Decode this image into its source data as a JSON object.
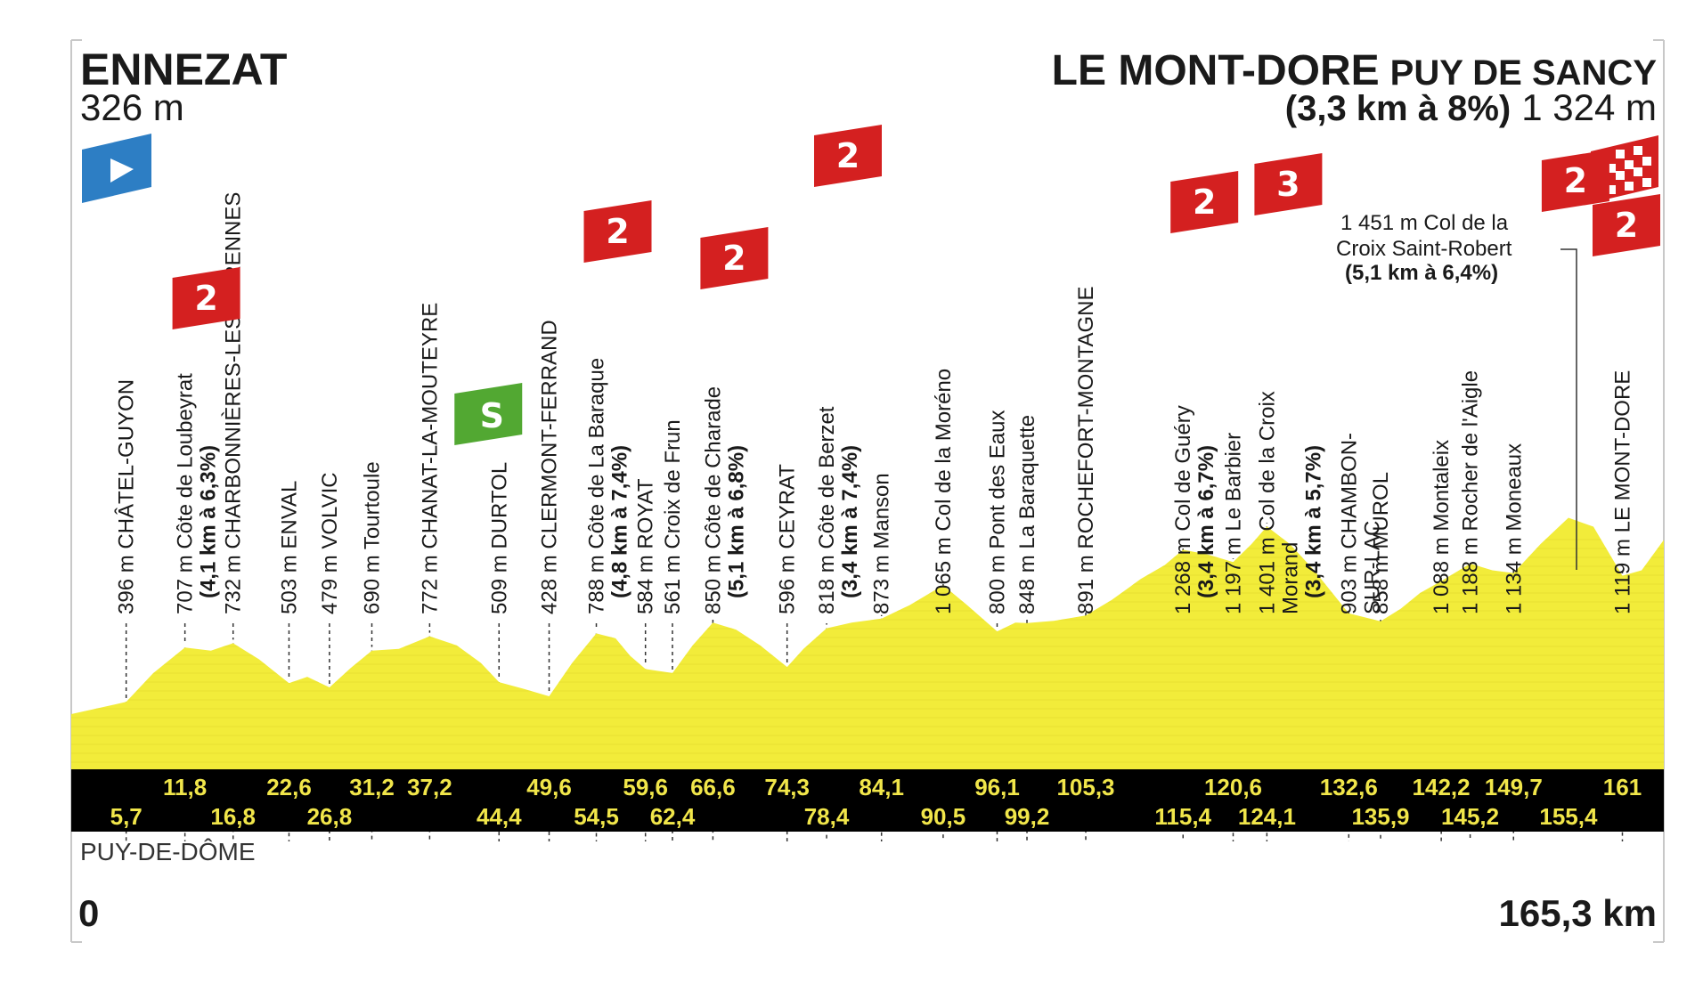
{
  "start": {
    "name": "ENNEZAT",
    "altitude": "326 m"
  },
  "finish": {
    "name": "LE MONT-DORE",
    "name_suffix": "PUY DE SANCY",
    "climb_info": "(3,3 km à 8%)",
    "altitude": "1 324 m"
  },
  "department": "PUY-DE-DÔME",
  "distance_start": "0",
  "distance_end": "165,3 km",
  "colors": {
    "profile": "#f2ec3a",
    "profile_shade": "#e0d92a",
    "category": "#d42020",
    "sprint": "#52a832",
    "start_flag": "#2d7ec4",
    "band": "#000000",
    "band_text": "#f1e64a"
  },
  "climb_markers": [
    {
      "category": "2",
      "km": 11.8
    },
    {
      "category": "2",
      "km": 54.5
    },
    {
      "category": "2",
      "km": 66.6
    },
    {
      "category": "2",
      "km": 78.4
    },
    {
      "category": "2",
      "km": 115.4
    },
    {
      "category": "3",
      "km": 124.1
    },
    {
      "category": "2",
      "km": 155.4
    },
    {
      "category": "2",
      "km": 165.3
    }
  ],
  "sprint": {
    "label": "S",
    "km": 44.4
  },
  "cima_label": {
    "line1": "1 451 m Col de la",
    "line2": "Croix Saint-Robert",
    "line3": "(5,1 km à 6,4%)"
  },
  "waypoints": [
    {
      "km": 5.7,
      "alt": "396 m",
      "name": "CHÂTEL-GUYON",
      "name_bold": ""
    },
    {
      "km": 11.8,
      "alt": "707 m",
      "name": "Côte de Loubeyrat",
      "name_bold": "(4,1 km à 6,3%)"
    },
    {
      "km": 16.8,
      "alt": "732 m",
      "name": "CHARBONNIÈRES-LES-VARENNES",
      "name_bold": ""
    },
    {
      "km": 22.6,
      "alt": "503 m",
      "name": "ENVAL",
      "name_bold": ""
    },
    {
      "km": 26.8,
      "alt": "479 m",
      "name": "VOLVIC",
      "name_bold": ""
    },
    {
      "km": 31.2,
      "alt": "690 m",
      "name": "Tourtoule",
      "name_bold": ""
    },
    {
      "km": 37.2,
      "alt": "772 m",
      "name": "CHANAT-LA-MOUTEYRE",
      "name_bold": ""
    },
    {
      "km": 44.4,
      "alt": "509 m",
      "name": "DURTOL",
      "name_bold": ""
    },
    {
      "km": 49.6,
      "alt": "428 m",
      "name": "CLERMONT-FERRAND",
      "name_bold": ""
    },
    {
      "km": 54.5,
      "alt": "788 m",
      "name": "Côte de La Baraque",
      "name_bold": "(4,8 km à 7,4%)"
    },
    {
      "km": 59.6,
      "alt": "584 m",
      "name": "ROYAT",
      "name_bold": ""
    },
    {
      "km": 62.4,
      "alt": "561 m",
      "name": "Croix de Frun",
      "name_bold": ""
    },
    {
      "km": 66.6,
      "alt": "850 m",
      "name": "Côte de Charade",
      "name_bold": "(5,1 km à 6,8%)"
    },
    {
      "km": 74.3,
      "alt": "596 m",
      "name": "CEYRAT",
      "name_bold": ""
    },
    {
      "km": 78.4,
      "alt": "818 m",
      "name": "Côte de Berzet",
      "name_bold": "(3,4 km à 7,4%)"
    },
    {
      "km": 84.1,
      "alt": "873 m",
      "name": "Manson",
      "name_bold": ""
    },
    {
      "km": 90.5,
      "alt": "1 065 m",
      "name": "Col de la Moréno",
      "name_bold": ""
    },
    {
      "km": 96.1,
      "alt": "800 m",
      "name": "Pont des Eaux",
      "name_bold": ""
    },
    {
      "km": 99.2,
      "alt": "848 m",
      "name": "La Baraquette",
      "name_bold": ""
    },
    {
      "km": 105.3,
      "alt": "891 m",
      "name": "ROCHEFORT-MONTAGNE",
      "name_bold": ""
    },
    {
      "km": 115.4,
      "alt": "1 268 m",
      "name": "Col de Guéry",
      "name_bold": "(3,4 km à 6,7%)"
    },
    {
      "km": 120.6,
      "alt": "1 197 m",
      "name": "Le Barbier",
      "name_bold": ""
    },
    {
      "km": 124.1,
      "alt": "1 401 m",
      "name": "Col de la Croix",
      "name_line2": "Morand",
      "name_bold": "(3,4 km à 5,7%)"
    },
    {
      "km": 132.6,
      "alt": "903 m",
      "name": "CHAMBON-",
      "name_line2": "SUR-LAC",
      "name_bold": ""
    },
    {
      "km": 135.9,
      "alt": "858 m",
      "name": "MUROL",
      "name_bold": ""
    },
    {
      "km": 142.2,
      "alt": "1 088 m",
      "name": "Montaleix",
      "name_bold": ""
    },
    {
      "km": 145.2,
      "alt": "1 188 m",
      "name": "Rocher de l'Aigle",
      "name_bold": ""
    },
    {
      "km": 149.7,
      "alt": "1 134 m",
      "name": "Moneaux",
      "name_bold": ""
    },
    {
      "km": 161,
      "alt": "1 119 m",
      "name": "LE MONT-DORE",
      "name_bold": ""
    }
  ],
  "km_marks_top": [
    "11,8",
    "22,6",
    "31,2",
    "37,2",
    "49,6",
    "59,6",
    "66,6",
    "74,3",
    "84,1",
    "96,1",
    "105,3",
    "120,6",
    "132,6",
    "142,2",
    "149,7",
    "161"
  ],
  "km_marks_bottom": [
    "5,7",
    "16,8",
    "26,8",
    "44,4",
    "54,5",
    "62,4",
    "78,4",
    "90,5",
    "99,2",
    "115,4",
    "124,1",
    "135,9",
    "145,2",
    "155,4"
  ],
  "chart_data": {
    "type": "area",
    "x_unit": "km",
    "y_unit": "m",
    "xlim": [
      0,
      165.3
    ],
    "profile": [
      [
        0,
        326
      ],
      [
        5.7,
        396
      ],
      [
        8.5,
        560
      ],
      [
        11.8,
        707
      ],
      [
        14.5,
        690
      ],
      [
        16.8,
        732
      ],
      [
        19.5,
        640
      ],
      [
        22.6,
        503
      ],
      [
        24.5,
        540
      ],
      [
        26.8,
        479
      ],
      [
        29,
        590
      ],
      [
        31.2,
        690
      ],
      [
        34,
        700
      ],
      [
        37.2,
        772
      ],
      [
        40,
        720
      ],
      [
        42.5,
        620
      ],
      [
        44.4,
        509
      ],
      [
        47,
        470
      ],
      [
        49.6,
        428
      ],
      [
        52,
        620
      ],
      [
        54.5,
        788
      ],
      [
        56.5,
        760
      ],
      [
        58,
        660
      ],
      [
        59.6,
        584
      ],
      [
        62.4,
        561
      ],
      [
        64.5,
        720
      ],
      [
        66.6,
        850
      ],
      [
        69,
        810
      ],
      [
        71.5,
        720
      ],
      [
        74.3,
        596
      ],
      [
        76,
        700
      ],
      [
        78.4,
        818
      ],
      [
        81,
        850
      ],
      [
        84.1,
        873
      ],
      [
        87,
        950
      ],
      [
        90.5,
        1065
      ],
      [
        93,
        950
      ],
      [
        96.1,
        800
      ],
      [
        98,
        850
      ],
      [
        99.2,
        848
      ],
      [
        102,
        860
      ],
      [
        105.3,
        891
      ],
      [
        108,
        980
      ],
      [
        111,
        1100
      ],
      [
        113.5,
        1180
      ],
      [
        115.4,
        1268
      ],
      [
        118,
        1240
      ],
      [
        120.6,
        1197
      ],
      [
        122.5,
        1300
      ],
      [
        124.1,
        1401
      ],
      [
        126.5,
        1300
      ],
      [
        129,
        1150
      ],
      [
        132.6,
        903
      ],
      [
        135.9,
        858
      ],
      [
        138,
        930
      ],
      [
        140,
        1020
      ],
      [
        142.2,
        1088
      ],
      [
        145.2,
        1188
      ],
      [
        147.5,
        1150
      ],
      [
        149.7,
        1134
      ],
      [
        152.5,
        1300
      ],
      [
        155.4,
        1451
      ],
      [
        158,
        1400
      ],
      [
        161,
        1119
      ],
      [
        163,
        1150
      ],
      [
        165.3,
        1324
      ]
    ],
    "points": [
      {
        "km": 5.7,
        "altitude": 396,
        "name": "CHÂTEL-GUYON"
      },
      {
        "km": 11.8,
        "altitude": 707,
        "name": "Côte de Loubeyrat",
        "category": "2",
        "climb": "4,1 km à 6,3%"
      },
      {
        "km": 16.8,
        "altitude": 732,
        "name": "CHARBONNIÈRES-LES-VARENNES"
      },
      {
        "km": 22.6,
        "altitude": 503,
        "name": "ENVAL"
      },
      {
        "km": 26.8,
        "altitude": 479,
        "name": "VOLVIC"
      },
      {
        "km": 31.2,
        "altitude": 690,
        "name": "Tourtoule"
      },
      {
        "km": 37.2,
        "altitude": 772,
        "name": "CHANAT-LA-MOUTEYRE"
      },
      {
        "km": 44.4,
        "altitude": 509,
        "name": "DURTOL",
        "sprint": true
      },
      {
        "km": 49.6,
        "altitude": 428,
        "name": "CLERMONT-FERRAND"
      },
      {
        "km": 54.5,
        "altitude": 788,
        "name": "Côte de La Baraque",
        "category": "2",
        "climb": "4,8 km à 7,4%"
      },
      {
        "km": 59.6,
        "altitude": 584,
        "name": "ROYAT"
      },
      {
        "km": 62.4,
        "altitude": 561,
        "name": "Croix de Frun"
      },
      {
        "km": 66.6,
        "altitude": 850,
        "name": "Côte de Charade",
        "category": "2",
        "climb": "5,1 km à 6,8%"
      },
      {
        "km": 74.3,
        "altitude": 596,
        "name": "CEYRAT"
      },
      {
        "km": 78.4,
        "altitude": 818,
        "name": "Côte de Berzet",
        "category": "2",
        "climb": "3,4 km à 7,4%"
      },
      {
        "km": 84.1,
        "altitude": 873,
        "name": "Manson"
      },
      {
        "km": 90.5,
        "altitude": 1065,
        "name": "Col de la Moréno"
      },
      {
        "km": 96.1,
        "altitude": 800,
        "name": "Pont des Eaux"
      },
      {
        "km": 99.2,
        "altitude": 848,
        "name": "La Baraquette"
      },
      {
        "km": 105.3,
        "altitude": 891,
        "name": "ROCHEFORT-MONTAGNE"
      },
      {
        "km": 115.4,
        "altitude": 1268,
        "name": "Col de Guéry",
        "category": "2",
        "climb": "3,4 km à 6,7%"
      },
      {
        "km": 120.6,
        "altitude": 1197,
        "name": "Le Barbier"
      },
      {
        "km": 124.1,
        "altitude": 1401,
        "name": "Col de la Croix Morand",
        "category": "3",
        "climb": "3,4 km à 5,7%"
      },
      {
        "km": 132.6,
        "altitude": 903,
        "name": "CHAMBON-SUR-LAC"
      },
      {
        "km": 135.9,
        "altitude": 858,
        "name": "MUROL"
      },
      {
        "km": 142.2,
        "altitude": 1088,
        "name": "Montaleix"
      },
      {
        "km": 145.2,
        "altitude": 1188,
        "name": "Rocher de l'Aigle"
      },
      {
        "km": 149.7,
        "altitude": 1134,
        "name": "Moneaux"
      },
      {
        "km": 155.4,
        "altitude": 1451,
        "name": "Col de la Croix Saint-Robert",
        "category": "2",
        "climb": "5,1 km à 6,4%"
      },
      {
        "km": 161,
        "altitude": 1119,
        "name": "LE MONT-DORE"
      },
      {
        "km": 165.3,
        "altitude": 1324,
        "name": "LE MONT-DORE PUY DE SANCY",
        "category": "2",
        "climb": "3,3 km à 8%"
      }
    ]
  }
}
